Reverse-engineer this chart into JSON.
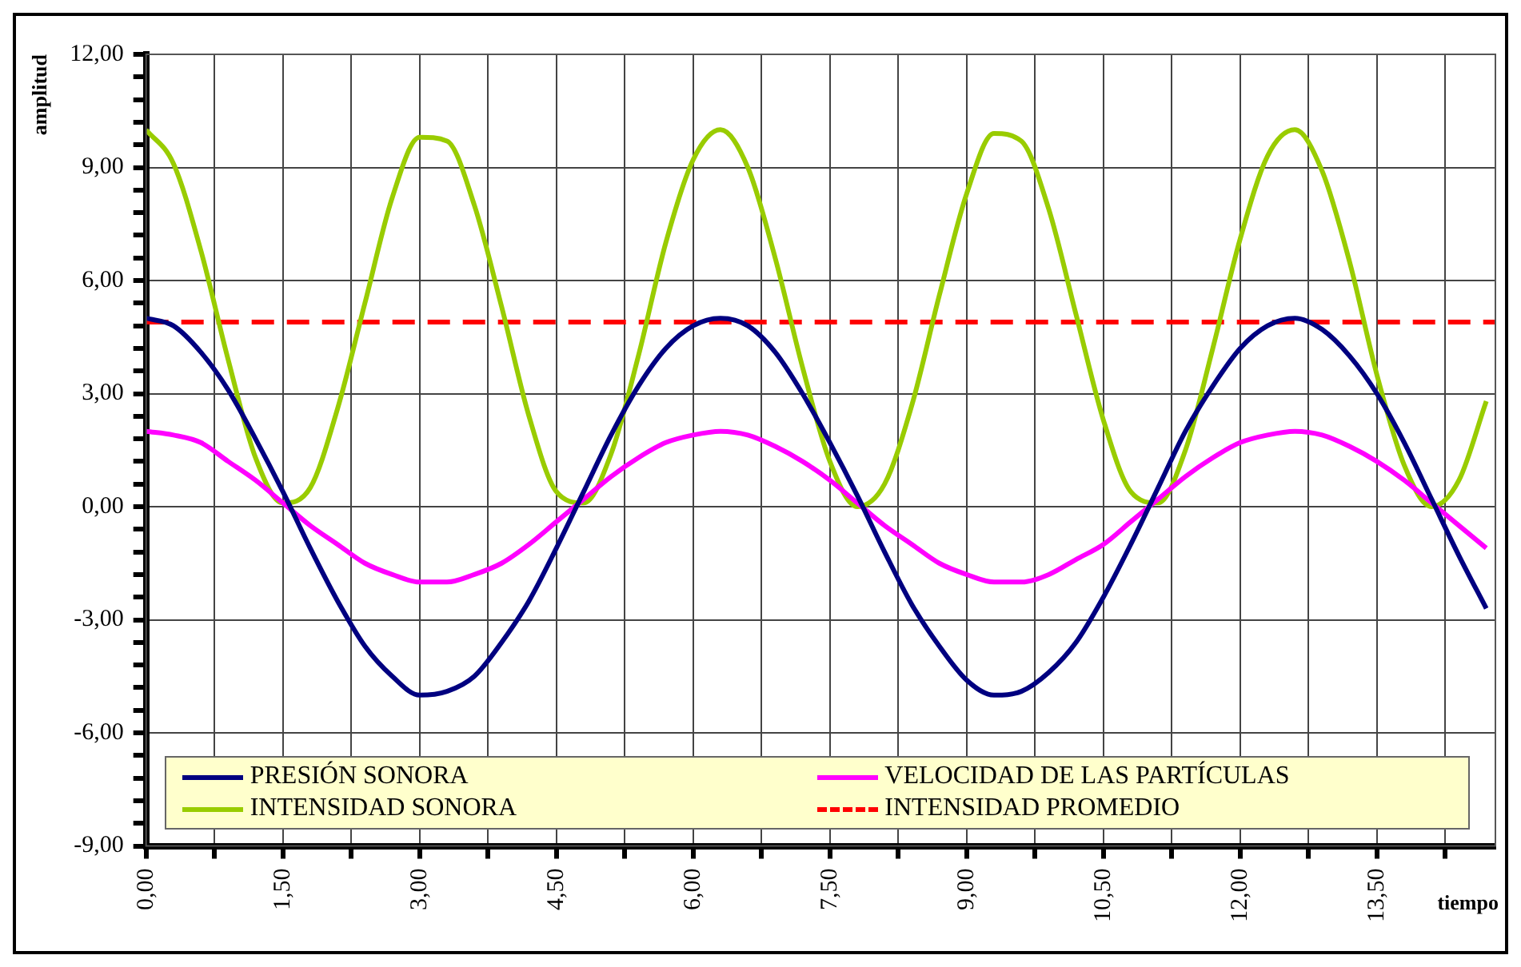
{
  "chart_data": {
    "type": "line",
    "xlabel": "tiempo",
    "ylabel": "amplitud",
    "x": [
      0,
      0.3,
      0.6,
      0.9,
      1.2,
      1.5,
      1.8,
      2.1,
      2.4,
      2.7,
      3.0,
      3.3,
      3.6,
      3.9,
      4.2,
      4.5,
      4.8,
      5.1,
      5.4,
      5.7,
      6.0,
      6.3,
      6.6,
      6.9,
      7.2,
      7.5,
      7.8,
      8.1,
      8.4,
      8.7,
      9.0,
      9.3,
      9.6,
      9.9,
      10.2,
      10.5,
      10.8,
      11.1,
      11.4,
      11.7,
      12.0,
      12.3,
      12.6,
      12.9,
      13.2,
      13.5,
      13.8,
      14.1,
      14.4,
      14.7
    ],
    "series": [
      {
        "name": "PRESIÓN SONORA",
        "color": "#000080",
        "values": [
          5.0,
          4.8,
          4.1,
          3.1,
          1.8,
          0.4,
          -1.1,
          -2.5,
          -3.7,
          -4.5,
          -5.0,
          -4.9,
          -4.5,
          -3.6,
          -2.5,
          -1.1,
          0.4,
          1.9,
          3.2,
          4.2,
          4.8,
          5.0,
          4.8,
          4.1,
          3.0,
          1.7,
          0.3,
          -1.2,
          -2.6,
          -3.7,
          -4.6,
          -5.0,
          -4.9,
          -4.4,
          -3.6,
          -2.4,
          -1.0,
          0.5,
          2.0,
          3.2,
          4.2,
          4.8,
          5.0,
          4.7,
          4.0,
          3.0,
          1.7,
          0.2,
          -1.3,
          -2.7
        ]
      },
      {
        "name": "VELOCIDAD DE LAS PARTÍCULAS",
        "color": "#ff00ff",
        "values": [
          2.0,
          1.9,
          1.7,
          1.2,
          0.7,
          0.1,
          -0.5,
          -1.0,
          -1.5,
          -1.8,
          -2.0,
          -2.0,
          -1.8,
          -1.5,
          -1.0,
          -0.4,
          0.2,
          0.8,
          1.3,
          1.7,
          1.9,
          2.0,
          1.9,
          1.6,
          1.2,
          0.7,
          0.1,
          -0.5,
          -1.0,
          -1.5,
          -1.8,
          -2.0,
          -2.0,
          -1.8,
          -1.4,
          -1.0,
          -0.4,
          0.2,
          0.8,
          1.3,
          1.7,
          1.9,
          2.0,
          1.9,
          1.6,
          1.2,
          0.7,
          0.1,
          -0.5,
          -1.1
        ]
      },
      {
        "name": "INTENSIDAD SONORA",
        "color": "#99cc00",
        "values": [
          10.0,
          9.1,
          6.8,
          3.9,
          1.3,
          0.1,
          0.5,
          2.6,
          5.4,
          8.2,
          9.8,
          9.7,
          8.0,
          5.3,
          2.4,
          0.4,
          0.1,
          1.4,
          4.0,
          7.0,
          9.2,
          10.0,
          9.0,
          6.6,
          3.7,
          1.2,
          0.0,
          0.6,
          2.7,
          5.6,
          8.3,
          9.9,
          9.7,
          7.9,
          5.1,
          2.3,
          0.4,
          0.1,
          1.5,
          4.2,
          7.1,
          9.3,
          10.0,
          8.9,
          6.5,
          3.5,
          1.1,
          0.0,
          0.7,
          2.8
        ]
      },
      {
        "name": "INTENSIDAD PROMEDIO",
        "color": "#ff0000",
        "line_style": "dashed",
        "x": [
          0,
          14.8
        ],
        "values": [
          4.9,
          4.9
        ]
      }
    ],
    "xlim": [
      0,
      14.8
    ],
    "xticks": [
      {
        "value": 0,
        "label": "0,00"
      },
      {
        "value": 0.75,
        "label": null
      },
      {
        "value": 1.5,
        "label": "1,50"
      },
      {
        "value": 2.25,
        "label": null
      },
      {
        "value": 3,
        "label": "3,00"
      },
      {
        "value": 3.75,
        "label": null
      },
      {
        "value": 4.5,
        "label": "4,50"
      },
      {
        "value": 5.25,
        "label": null
      },
      {
        "value": 6,
        "label": "6,00"
      },
      {
        "value": 6.75,
        "label": null
      },
      {
        "value": 7.5,
        "label": "7,50"
      },
      {
        "value": 8.25,
        "label": null
      },
      {
        "value": 9,
        "label": "9,00"
      },
      {
        "value": 9.75,
        "label": null
      },
      {
        "value": 10.5,
        "label": "10,50"
      },
      {
        "value": 11.25,
        "label": null
      },
      {
        "value": 12,
        "label": "12,00"
      },
      {
        "value": 12.75,
        "label": null
      },
      {
        "value": 13.5,
        "label": "13,50"
      },
      {
        "value": 14.25,
        "label": null
      }
    ],
    "ylim": [
      -9,
      12
    ],
    "yticks": [
      {
        "value": -9,
        "label": "-9,00"
      },
      {
        "value": -8.4,
        "label": null
      },
      {
        "value": -7.8,
        "label": null
      },
      {
        "value": -7.2,
        "label": null
      },
      {
        "value": -6.6,
        "label": null
      },
      {
        "value": -6,
        "label": "-6,00"
      },
      {
        "value": -5.4,
        "label": null
      },
      {
        "value": -4.8,
        "label": null
      },
      {
        "value": -4.2,
        "label": null
      },
      {
        "value": -3.6,
        "label": null
      },
      {
        "value": -3,
        "label": "-3,00"
      },
      {
        "value": -2.4,
        "label": null
      },
      {
        "value": -1.8,
        "label": null
      },
      {
        "value": -1.2,
        "label": null
      },
      {
        "value": -0.6,
        "label": null
      },
      {
        "value": 0,
        "label": "0,00"
      },
      {
        "value": 0.6,
        "label": null
      },
      {
        "value": 1.2,
        "label": null
      },
      {
        "value": 1.8,
        "label": null
      },
      {
        "value": 2.4,
        "label": null
      },
      {
        "value": 3,
        "label": "3,00"
      },
      {
        "value": 3.6,
        "label": null
      },
      {
        "value": 4.2,
        "label": null
      },
      {
        "value": 4.8,
        "label": null
      },
      {
        "value": 5.4,
        "label": null
      },
      {
        "value": 6,
        "label": "6,00"
      },
      {
        "value": 6.6,
        "label": null
      },
      {
        "value": 7.2,
        "label": null
      },
      {
        "value": 7.8,
        "label": null
      },
      {
        "value": 8.4,
        "label": null
      },
      {
        "value": 9,
        "label": "9,00"
      },
      {
        "value": 9.6,
        "label": null
      },
      {
        "value": 10.2,
        "label": null
      },
      {
        "value": 10.8,
        "label": null
      },
      {
        "value": 11.4,
        "label": null
      },
      {
        "value": 12,
        "label": "12,00"
      }
    ],
    "grid": true,
    "legend": "bottom"
  }
}
